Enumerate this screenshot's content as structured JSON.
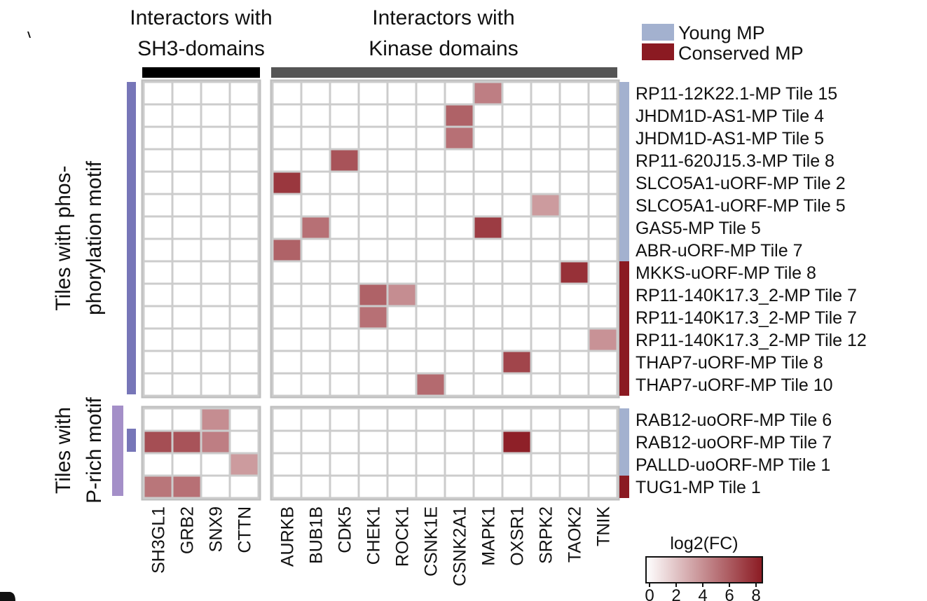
{
  "chart_data": {
    "type": "heatmap",
    "title": "",
    "column_groups": [
      {
        "label_line1": "Interactors with",
        "label_line2": "SH3-domains",
        "bar_color": "#000000",
        "columns": [
          "SH3GL1",
          "GRB2",
          "SNX9",
          "CTTN"
        ]
      },
      {
        "label_line1": "Interactors with",
        "label_line2": "Kinase domains",
        "bar_color": "#555555",
        "columns": [
          "AURKB",
          "BUB1B",
          "CDK5",
          "CHEK1",
          "ROCK1",
          "CSNK1E",
          "CSNK2A1",
          "MAPK1",
          "OXSR1",
          "SRPK2",
          "TAOK2",
          "TNIK"
        ]
      }
    ],
    "row_groups": [
      {
        "label_line1": "Tiles with phos-",
        "label_line2": "phorylation motif",
        "rows": [
          {
            "name": "RP11-12K22.1-MP Tile 15",
            "class": "Young MP"
          },
          {
            "name": "JHDM1D-AS1-MP Tile 4",
            "class": "Young MP"
          },
          {
            "name": "JHDM1D-AS1-MP Tile 5",
            "class": "Young MP"
          },
          {
            "name": "RP11-620J15.3-MP Tile 8",
            "class": "Young MP"
          },
          {
            "name": "SLCO5A1-uORF-MP Tile 2",
            "class": "Young MP"
          },
          {
            "name": "SLCO5A1-uORF-MP Tile 5",
            "class": "Young MP"
          },
          {
            "name": "GAS5-MP Tile 5",
            "class": "Young MP"
          },
          {
            "name": "ABR-uORF-MP Tile 7",
            "class": "Young MP"
          },
          {
            "name": "MKKS-uORF-MP Tile 8",
            "class": "Conserved MP"
          },
          {
            "name": "RP11-140K17.3_2-MP Tile 7",
            "class": "Conserved MP"
          },
          {
            "name": "RP11-140K17.3_2-MP Tile 7",
            "class": "Conserved MP"
          },
          {
            "name": "RP11-140K17.3_2-MP Tile 12",
            "class": "Conserved MP"
          },
          {
            "name": "THAP7-uORF-MP Tile 8",
            "class": "Conserved MP"
          },
          {
            "name": "THAP7-uORF-MP Tile 10",
            "class": "Conserved MP"
          }
        ]
      },
      {
        "label_line1": "Tiles with",
        "label_line2": "P-rich motif",
        "rows": [
          {
            "name": "RAB12-uoORF-MP Tile 6",
            "class": "Young MP"
          },
          {
            "name": "RAB12-uoORF-MP Tile 7",
            "class": "Young MP"
          },
          {
            "name": "PALLD-uoORF-MP Tile 1",
            "class": "Young MP"
          },
          {
            "name": "TUG1-MP Tile 1",
            "class": "Conserved MP"
          }
        ]
      }
    ],
    "values": [
      [
        0,
        0,
        0,
        0,
        0,
        0,
        0,
        0,
        0,
        0,
        0,
        4.5,
        0,
        0,
        0,
        0
      ],
      [
        0,
        0,
        0,
        0,
        0,
        0,
        0,
        0,
        0,
        0,
        5.5,
        0,
        0,
        0,
        0,
        0
      ],
      [
        0,
        0,
        0,
        0,
        0,
        0,
        0,
        0,
        0,
        0,
        5.0,
        0,
        0,
        0,
        0,
        0
      ],
      [
        0,
        0,
        0,
        0,
        0,
        0,
        6.0,
        0,
        0,
        0,
        0,
        0,
        0,
        0,
        0,
        0
      ],
      [
        0,
        0,
        0,
        0,
        7.0,
        0,
        0,
        0,
        0,
        0,
        0,
        0,
        0,
        0,
        0,
        0
      ],
      [
        0,
        0,
        0,
        0,
        0,
        0,
        0,
        0,
        0,
        0,
        0,
        0,
        0,
        3.5,
        0,
        0
      ],
      [
        0,
        0,
        0,
        0,
        0,
        5.0,
        0,
        0,
        0,
        0,
        0,
        6.8,
        0,
        0,
        0,
        0
      ],
      [
        0,
        0,
        0,
        0,
        5.5,
        0,
        0,
        0,
        0,
        0,
        0,
        0,
        0,
        0,
        0,
        0
      ],
      [
        0,
        0,
        0,
        0,
        0,
        0,
        0,
        0,
        0,
        0,
        0,
        0,
        0,
        0,
        7.2,
        0
      ],
      [
        0,
        0,
        0,
        0,
        0,
        0,
        0,
        5.5,
        4.0,
        0,
        0,
        0,
        0,
        0,
        0,
        0
      ],
      [
        0,
        0,
        0,
        0,
        0,
        0,
        0,
        5.0,
        0,
        0,
        0,
        0,
        0,
        0,
        0,
        0
      ],
      [
        0,
        0,
        0,
        0,
        0,
        0,
        0,
        0,
        0,
        0,
        0,
        0,
        0,
        0,
        0,
        3.8
      ],
      [
        0,
        0,
        0,
        0,
        0,
        0,
        0,
        0,
        0,
        0,
        0,
        0,
        6.5,
        0,
        0,
        0
      ],
      [
        0,
        0,
        0,
        0,
        0,
        0,
        0,
        0,
        0,
        5.2,
        0,
        0,
        0,
        0,
        0,
        0
      ],
      [
        0,
        0,
        4.0,
        0,
        0,
        0,
        0,
        0,
        0,
        0,
        0,
        0,
        0,
        0,
        0,
        0
      ],
      [
        6.2,
        6.0,
        4.5,
        0,
        0,
        0,
        0,
        0,
        0,
        0,
        0,
        0,
        7.8,
        0,
        0,
        0
      ],
      [
        0,
        0,
        0,
        3.5,
        0,
        0,
        0,
        0,
        0,
        0,
        0,
        0,
        0,
        0,
        0,
        0
      ],
      [
        4.8,
        5.0,
        0,
        0,
        0,
        0,
        0,
        0,
        0,
        0,
        0,
        0,
        0,
        0,
        0,
        0
      ]
    ],
    "legend": {
      "classes": [
        {
          "label": "Young MP",
          "color": "#a3b1cf"
        },
        {
          "label": "Conserved MP",
          "color": "#8b1a22"
        }
      ],
      "colorbar": {
        "title": "log2(FC)",
        "min": 0,
        "max": 8,
        "ticks": [
          "0",
          "2",
          "4",
          "6",
          "8"
        ],
        "low_color": "#ffffff",
        "high_color": "#8b1a22"
      }
    },
    "colors": {
      "phospho_bar": "#7776b8",
      "prich_outer_bar": "#a48fc8",
      "prich_inner_bar": "#7776b8",
      "grid_line": "#cccccc",
      "cell_empty": "#ffffff"
    }
  }
}
